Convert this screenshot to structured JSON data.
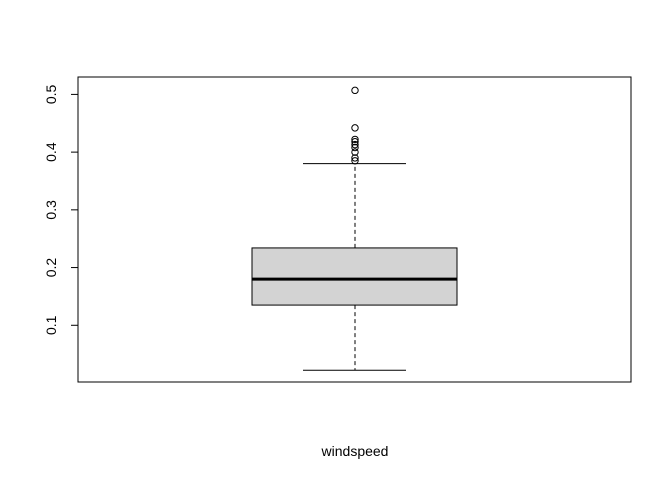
{
  "chart_data": {
    "type": "boxplot",
    "title": "",
    "xlabel": "windspeed",
    "ylabel": "",
    "ylim": [
      0.0,
      0.53
    ],
    "yticks": [
      0.1,
      0.2,
      0.3,
      0.4,
      0.5
    ],
    "ytick_labels": [
      "0.1",
      "0.2",
      "0.3",
      "0.4",
      "0.5"
    ],
    "grid": false,
    "box": {
      "whisker_low": 0.022,
      "q1": 0.135,
      "median": 0.18,
      "q3": 0.234,
      "whisker_high": 0.38
    },
    "outliers": [
      0.385,
      0.39,
      0.4,
      0.408,
      0.413,
      0.418,
      0.422,
      0.442,
      0.507
    ],
    "colors": {
      "box_fill": "#d3d3d3",
      "stroke": "#000000"
    }
  }
}
